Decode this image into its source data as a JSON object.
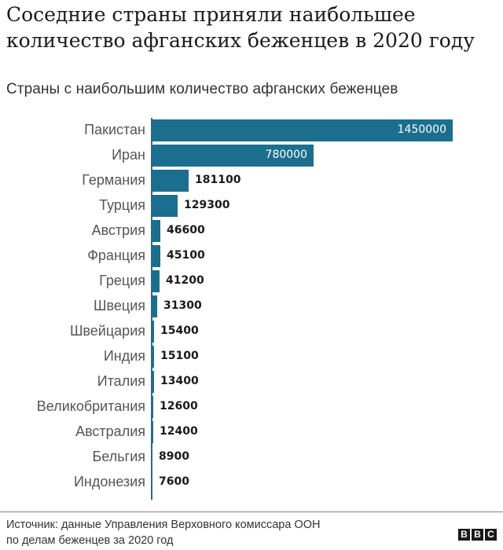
{
  "header": {
    "title": "Соседние страны приняли наибольшее количество афганских беженцев в 2020 году",
    "subtitle": "Страны с наибольшим количество афганских беженцев"
  },
  "footer": {
    "source_line1": "Источник: данные Управления Верховного комиссара ООН",
    "source_line2": "по делам беженцев за 2020 год",
    "logo": [
      "B",
      "B",
      "C"
    ]
  },
  "colors": {
    "bar": "#1b6e8e",
    "axis": "#2a6a85",
    "label": "#555555",
    "value": "#1a1a1a"
  },
  "chart_data": {
    "type": "bar",
    "orientation": "horizontal",
    "title": "Соседние страны приняли наибольшее количество афганских беженцев в 2020 году",
    "subtitle": "Страны с наибольшим количество афганских беженцев",
    "xlabel": "",
    "ylabel": "",
    "grid": false,
    "legend": null,
    "categories": [
      "Пакистан",
      "Иран",
      "Германия",
      "Турция",
      "Австрия",
      "Франция",
      "Греция",
      "Швеция",
      "Швейцария",
      "Индия",
      "Италия",
      "Великобритания",
      "Австралия",
      "Бельгия",
      "Индонезия"
    ],
    "values": [
      1450000,
      780000,
      181100,
      129300,
      46600,
      45100,
      41200,
      31300,
      15400,
      15100,
      13400,
      12600,
      12400,
      8900,
      7600
    ],
    "value_labels": [
      "1450000",
      "780000",
      "181100",
      "129300",
      "46600",
      "45100",
      "41200",
      "31300",
      "15400",
      "15100",
      "13400",
      "12600",
      "12400",
      "8900",
      "7600"
    ],
    "xlim": [
      0,
      1450000
    ],
    "source": "Источник: данные Управления Верховного комиссара ООН по делам беженцев за 2020 год"
  }
}
